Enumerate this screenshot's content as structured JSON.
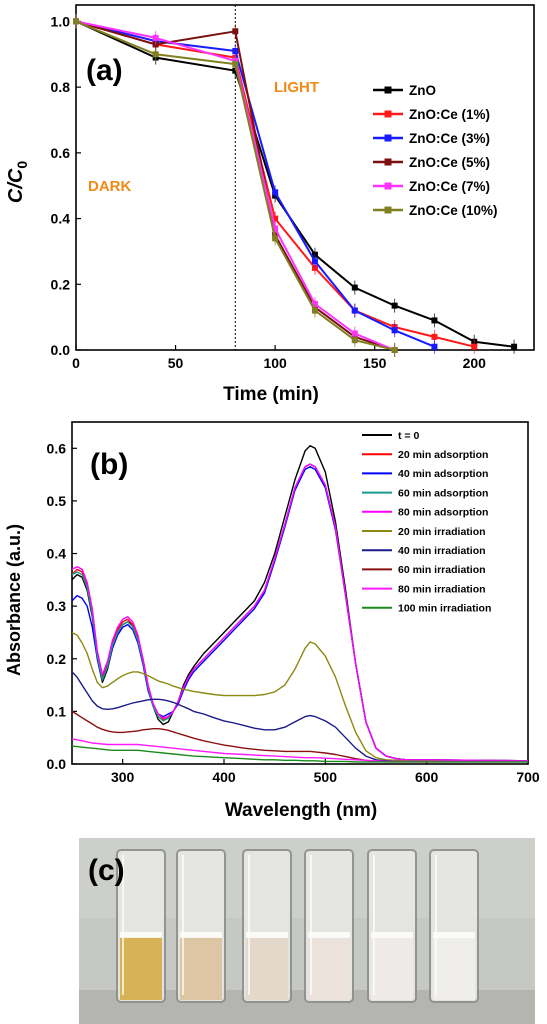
{
  "chart_data": [
    {
      "panel": "(a)",
      "type": "line",
      "xlabel": "Time (min)",
      "ylabel_main": "C/C",
      "ylabel_sub": "0",
      "xlim": [
        0,
        230
      ],
      "ylim": [
        0,
        1.05
      ],
      "xticks": [
        0,
        50,
        100,
        150,
        200
      ],
      "yticks": [
        0.0,
        0.2,
        0.4,
        0.6,
        0.8,
        1.0
      ],
      "xtick_labels": [
        "0",
        "50",
        "100",
        "150",
        "200"
      ],
      "ytick_labels": [
        "0.0",
        "0.2",
        "0.4",
        "0.6",
        "0.8",
        "1.0"
      ],
      "annotations": {
        "dark": "DARK",
        "light": "LIGHT",
        "light_on_time": 80
      },
      "legend_position": "right",
      "series": [
        {
          "name": "ZnO",
          "color": "#000000",
          "x": [
            0,
            40,
            80,
            100,
            120,
            140,
            160,
            180,
            200,
            220
          ],
          "y": [
            1.0,
            0.89,
            0.85,
            0.47,
            0.29,
            0.19,
            0.135,
            0.09,
            0.025,
            0.01
          ]
        },
        {
          "name": "ZnO:Ce (1%)",
          "color": "#ff1a1a",
          "x": [
            0,
            40,
            80,
            100,
            120,
            140,
            160,
            180,
            200
          ],
          "y": [
            1.0,
            0.93,
            0.89,
            0.4,
            0.25,
            0.12,
            0.07,
            0.04,
            0.01
          ]
        },
        {
          "name": "ZnO:Ce (3%)",
          "color": "#1a1aff",
          "x": [
            0,
            40,
            80,
            100,
            120,
            140,
            160,
            180
          ],
          "y": [
            1.0,
            0.94,
            0.91,
            0.48,
            0.27,
            0.12,
            0.06,
            0.01
          ]
        },
        {
          "name": "ZnO:Ce (5%)",
          "color": "#7a1010",
          "x": [
            0,
            40,
            80,
            100,
            120,
            140,
            160
          ],
          "y": [
            1.0,
            0.93,
            0.97,
            0.35,
            0.13,
            0.04,
            0.0
          ]
        },
        {
          "name": "ZnO:Ce (7%)",
          "color": "#ff33ff",
          "x": [
            0,
            40,
            80,
            100,
            120,
            140,
            160
          ],
          "y": [
            1.0,
            0.95,
            0.88,
            0.37,
            0.14,
            0.05,
            0.0
          ]
        },
        {
          "name": "ZnO:Ce (10%)",
          "color": "#808020",
          "x": [
            0,
            40,
            80,
            100,
            120,
            140,
            160
          ],
          "y": [
            1.0,
            0.9,
            0.87,
            0.34,
            0.12,
            0.03,
            0.0
          ]
        }
      ]
    },
    {
      "panel": "(b)",
      "type": "line",
      "xlabel": "Wavelength (nm)",
      "ylabel": "Absorbance (a.u.)",
      "xlim": [
        250,
        700
      ],
      "ylim": [
        0,
        0.65
      ],
      "xticks": [
        300,
        400,
        500,
        600,
        700
      ],
      "yticks": [
        0.0,
        0.1,
        0.2,
        0.3,
        0.4,
        0.5,
        0.6
      ],
      "xtick_labels": [
        "300",
        "400",
        "500",
        "600",
        "700"
      ],
      "ytick_labels": [
        "0.0",
        "0.1",
        "0.2",
        "0.3",
        "0.4",
        "0.5",
        "0.6"
      ],
      "legend_position": "top-right",
      "x": [
        250,
        255,
        260,
        265,
        270,
        275,
        280,
        285,
        290,
        295,
        300,
        305,
        310,
        315,
        320,
        325,
        330,
        335,
        340,
        345,
        350,
        355,
        360,
        365,
        370,
        380,
        390,
        400,
        410,
        420,
        430,
        440,
        450,
        460,
        470,
        480,
        485,
        490,
        500,
        510,
        520,
        530,
        540,
        550,
        560,
        570,
        580,
        600,
        650,
        700
      ],
      "series": [
        {
          "name": "t = 0",
          "color": "#000000",
          "y": [
            0.35,
            0.36,
            0.355,
            0.33,
            0.28,
            0.2,
            0.155,
            0.18,
            0.22,
            0.25,
            0.265,
            0.27,
            0.265,
            0.24,
            0.2,
            0.15,
            0.11,
            0.085,
            0.075,
            0.08,
            0.1,
            0.12,
            0.15,
            0.17,
            0.185,
            0.21,
            0.23,
            0.25,
            0.27,
            0.29,
            0.31,
            0.345,
            0.4,
            0.47,
            0.54,
            0.595,
            0.605,
            0.6,
            0.555,
            0.46,
            0.33,
            0.19,
            0.08,
            0.03,
            0.015,
            0.01,
            0.008,
            0.007,
            0.006,
            0.005
          ]
        },
        {
          "name": "20 min adsorption",
          "color": "#ff0000",
          "y": [
            0.36,
            0.37,
            0.365,
            0.34,
            0.29,
            0.21,
            0.165,
            0.19,
            0.23,
            0.255,
            0.27,
            0.275,
            0.265,
            0.24,
            0.2,
            0.15,
            0.115,
            0.095,
            0.085,
            0.09,
            0.1,
            0.12,
            0.145,
            0.165,
            0.18,
            0.2,
            0.22,
            0.24,
            0.26,
            0.28,
            0.3,
            0.33,
            0.39,
            0.455,
            0.525,
            0.565,
            0.57,
            0.565,
            0.53,
            0.45,
            0.32,
            0.19,
            0.08,
            0.03,
            0.015,
            0.01,
            0.008,
            0.008,
            0.007,
            0.006
          ]
        },
        {
          "name": "40 min adsorption",
          "color": "#0000ff",
          "y": [
            0.31,
            0.32,
            0.315,
            0.3,
            0.26,
            0.2,
            0.16,
            0.185,
            0.22,
            0.245,
            0.26,
            0.265,
            0.255,
            0.23,
            0.19,
            0.14,
            0.11,
            0.095,
            0.09,
            0.095,
            0.1,
            0.115,
            0.14,
            0.16,
            0.175,
            0.195,
            0.215,
            0.235,
            0.255,
            0.275,
            0.295,
            0.325,
            0.385,
            0.45,
            0.52,
            0.56,
            0.565,
            0.56,
            0.525,
            0.445,
            0.32,
            0.19,
            0.08,
            0.03,
            0.015,
            0.01,
            0.008,
            0.008,
            0.007,
            0.006
          ]
        },
        {
          "name": "60 min adsorption",
          "color": "#1a9a8a",
          "y": [
            0.36,
            0.365,
            0.36,
            0.335,
            0.285,
            0.205,
            0.16,
            0.185,
            0.225,
            0.25,
            0.265,
            0.27,
            0.26,
            0.235,
            0.195,
            0.145,
            0.11,
            0.09,
            0.082,
            0.087,
            0.1,
            0.12,
            0.145,
            0.165,
            0.18,
            0.2,
            0.22,
            0.24,
            0.26,
            0.28,
            0.3,
            0.33,
            0.39,
            0.455,
            0.525,
            0.565,
            0.57,
            0.565,
            0.53,
            0.45,
            0.32,
            0.19,
            0.08,
            0.03,
            0.015,
            0.01,
            0.008,
            0.008,
            0.007,
            0.006
          ]
        },
        {
          "name": "80 min adsorption",
          "color": "#ff00ff",
          "y": [
            0.37,
            0.375,
            0.37,
            0.345,
            0.295,
            0.215,
            0.17,
            0.195,
            0.235,
            0.26,
            0.275,
            0.28,
            0.27,
            0.245,
            0.2,
            0.15,
            0.115,
            0.095,
            0.087,
            0.09,
            0.1,
            0.12,
            0.145,
            0.165,
            0.18,
            0.2,
            0.22,
            0.24,
            0.26,
            0.28,
            0.3,
            0.33,
            0.39,
            0.455,
            0.525,
            0.565,
            0.57,
            0.565,
            0.53,
            0.45,
            0.32,
            0.19,
            0.08,
            0.03,
            0.015,
            0.01,
            0.008,
            0.008,
            0.007,
            0.006
          ]
        },
        {
          "name": "20 min irradiation",
          "color": "#8a8a10",
          "y": [
            0.25,
            0.245,
            0.23,
            0.21,
            0.18,
            0.155,
            0.145,
            0.148,
            0.155,
            0.162,
            0.168,
            0.172,
            0.175,
            0.175,
            0.172,
            0.168,
            0.163,
            0.158,
            0.155,
            0.152,
            0.148,
            0.145,
            0.142,
            0.14,
            0.138,
            0.135,
            0.132,
            0.13,
            0.13,
            0.13,
            0.13,
            0.132,
            0.137,
            0.15,
            0.18,
            0.22,
            0.232,
            0.228,
            0.205,
            0.165,
            0.11,
            0.06,
            0.025,
            0.012,
            0.008,
            0.007,
            0.006,
            0.006,
            0.005,
            0.005
          ]
        },
        {
          "name": "40 min irradiation",
          "color": "#1a1a8a",
          "y": [
            0.175,
            0.165,
            0.15,
            0.135,
            0.12,
            0.11,
            0.105,
            0.104,
            0.105,
            0.107,
            0.11,
            0.113,
            0.116,
            0.118,
            0.12,
            0.122,
            0.123,
            0.123,
            0.122,
            0.12,
            0.117,
            0.113,
            0.109,
            0.105,
            0.1,
            0.095,
            0.088,
            0.082,
            0.078,
            0.073,
            0.068,
            0.065,
            0.065,
            0.07,
            0.08,
            0.09,
            0.092,
            0.09,
            0.082,
            0.07,
            0.05,
            0.03,
            0.015,
            0.008,
            0.006,
            0.005,
            0.005,
            0.005,
            0.005,
            0.005
          ]
        },
        {
          "name": "60 min irradiation",
          "color": "#8a1010",
          "y": [
            0.1,
            0.094,
            0.088,
            0.082,
            0.076,
            0.07,
            0.066,
            0.063,
            0.061,
            0.06,
            0.06,
            0.061,
            0.062,
            0.063,
            0.065,
            0.066,
            0.067,
            0.067,
            0.066,
            0.064,
            0.061,
            0.058,
            0.055,
            0.052,
            0.049,
            0.044,
            0.04,
            0.036,
            0.033,
            0.03,
            0.028,
            0.026,
            0.025,
            0.024,
            0.024,
            0.024,
            0.024,
            0.023,
            0.021,
            0.018,
            0.014,
            0.01,
            0.007,
            0.005,
            0.004,
            0.004,
            0.004,
            0.004,
            0.004,
            0.004
          ]
        },
        {
          "name": "80 min irradiation",
          "color": "#ff1aff",
          "y": [
            0.048,
            0.046,
            0.044,
            0.042,
            0.04,
            0.039,
            0.038,
            0.037,
            0.037,
            0.037,
            0.037,
            0.037,
            0.037,
            0.037,
            0.036,
            0.035,
            0.034,
            0.033,
            0.032,
            0.031,
            0.03,
            0.029,
            0.028,
            0.027,
            0.026,
            0.024,
            0.022,
            0.02,
            0.019,
            0.018,
            0.017,
            0.016,
            0.015,
            0.014,
            0.013,
            0.012,
            0.012,
            0.012,
            0.011,
            0.01,
            0.009,
            0.008,
            0.007,
            0.006,
            0.005,
            0.005,
            0.005,
            0.005,
            0.005,
            0.005
          ]
        },
        {
          "name": "100 min irradiation",
          "color": "#1a8a1a",
          "y": [
            0.034,
            0.033,
            0.032,
            0.031,
            0.03,
            0.029,
            0.028,
            0.027,
            0.026,
            0.026,
            0.026,
            0.026,
            0.026,
            0.026,
            0.025,
            0.024,
            0.023,
            0.022,
            0.021,
            0.02,
            0.019,
            0.018,
            0.017,
            0.016,
            0.015,
            0.014,
            0.013,
            0.012,
            0.011,
            0.01,
            0.009,
            0.008,
            0.008,
            0.007,
            0.007,
            0.006,
            0.006,
            0.006,
            0.005,
            0.005,
            0.005,
            0.004,
            0.004,
            0.004,
            0.004,
            0.004,
            0.004,
            0.004,
            0.004,
            0.004
          ]
        }
      ]
    }
  ],
  "photo": {
    "panel": "(c)",
    "background": "#c6c8c4",
    "cuvettes": [
      {
        "liquid": "#d8b256"
      },
      {
        "liquid": "#dcc6a4"
      },
      {
        "liquid": "#e4d8cb"
      },
      {
        "liquid": "#ece2dc"
      },
      {
        "liquid": "#eeeae8"
      },
      {
        "liquid": "#f0eeec"
      }
    ]
  }
}
